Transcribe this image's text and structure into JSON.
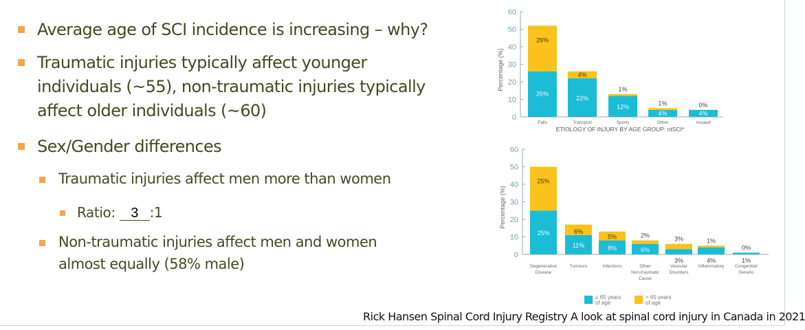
{
  "bullets": {
    "b1": "Average age of SCI incidence is increasing – why?",
    "b2_line1": "Traumatic injuries typically affect younger",
    "b2_line2": "individuals (~55), non-traumatic injuries typically",
    "b2_line3": "affect older individuals (~60)",
    "b3": "Sex/Gender differences",
    "b3a": "Traumatic injuries affect men more than women",
    "ratio_label": "Ratio:",
    "ratio_value": "3",
    "ratio_suffix": ":1",
    "b3b_line1": "Non-traumatic injuries affect men and women",
    "b3b_line2": "almost equally (58% male)"
  },
  "source": "Rick Hansen Spinal Cord Injury Registry A look at spinal cord injury in Canada in 2021",
  "colors": {
    "le65": "#1bbcd6",
    "gt65": "#fbc21c",
    "text": "#434a22",
    "bullet": "#f3a64c",
    "axis": "#6fa3a6"
  },
  "legend": [
    {
      "label_line1": "≤ 65 years",
      "label_line2": "of age"
    },
    {
      "label_line1": "> 65 years",
      "label_line2": "of age"
    }
  ],
  "chart_data": [
    {
      "type": "bar",
      "stacked": true,
      "title": "ETIOLOGY OF INJURY BY AGE GROUP: ntSCI*",
      "ylabel": "Percentage (%)",
      "ylim": [
        0,
        60
      ],
      "yticks": [
        0,
        10,
        20,
        30,
        40,
        50,
        60
      ],
      "categories": [
        "Falls",
        "Transport",
        "Sports",
        "Other",
        "Assault"
      ],
      "series": [
        {
          "name": "≤ 65 years of age",
          "values": [
            26,
            22,
            12,
            4,
            4
          ]
        },
        {
          "name": "> 65 years of age",
          "values": [
            26,
            4,
            1,
            1,
            0
          ]
        }
      ]
    },
    {
      "type": "bar",
      "stacked": true,
      "ylabel": "Percentage (%)",
      "ylim": [
        0,
        60
      ],
      "yticks": [
        0,
        10,
        20,
        30,
        40,
        50,
        60
      ],
      "categories": [
        "Degenerative\nDisease",
        "Tumours",
        "Infections",
        "Other\nNon-traumatic\nCause",
        "Vascular\nDisorders",
        "Inflammatory",
        "Congenital/\nGenetic"
      ],
      "series": [
        {
          "name": "≤ 65 years of age",
          "values": [
            25,
            11,
            8,
            6,
            3,
            4,
            1
          ]
        },
        {
          "name": "> 65 years of age",
          "values": [
            25,
            6,
            5,
            2,
            3,
            1,
            0
          ]
        }
      ]
    }
  ]
}
